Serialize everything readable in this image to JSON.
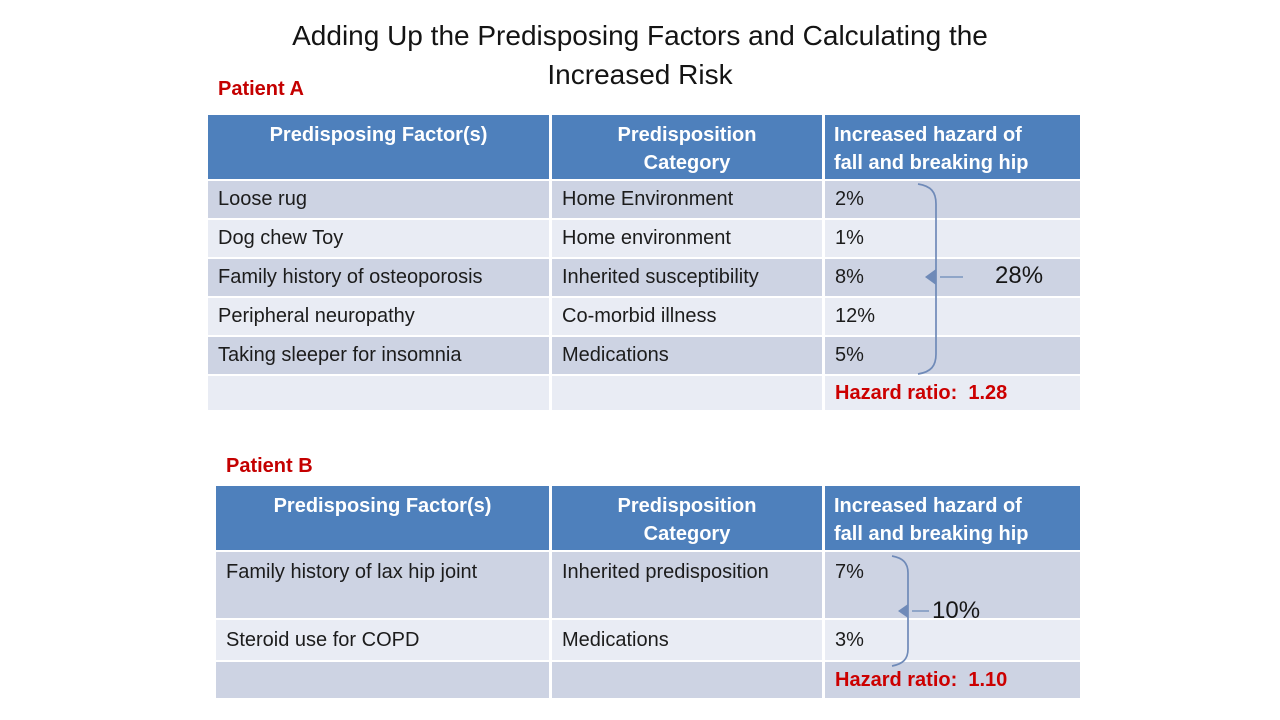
{
  "title": {
    "line1": "Adding Up the Predisposing Factors and Calculating the",
    "line2": "Increased Risk"
  },
  "tables": [
    {
      "label": "Patient A",
      "headers": [
        {
          "lines": [
            "Predisposing Factor(s)"
          ]
        },
        {
          "lines": [
            "Predisposition",
            "Category"
          ]
        },
        {
          "lines": [
            "Increased hazard of",
            "fall and breaking hip"
          ]
        }
      ],
      "rows": [
        {
          "factor": "Loose rug",
          "category": "Home Environment",
          "hazard": "2%"
        },
        {
          "factor": "Dog chew Toy",
          "category": "Home environment",
          "hazard": "1%"
        },
        {
          "factor": "Family history of osteoporosis",
          "category": "Inherited susceptibility",
          "hazard": "8%"
        },
        {
          "factor": "Peripheral neuropathy",
          "category": "Co-morbid illness",
          "hazard": "12%"
        },
        {
          "factor": "Taking sleeper for insomnia",
          "category": "Medications",
          "hazard": "5%"
        }
      ],
      "combined_total": "28%",
      "hazard_ratio_label": "Hazard ratio:",
      "hazard_ratio_value": "1.28"
    },
    {
      "label": "Patient B",
      "headers": [
        {
          "lines": [
            "Predisposing Factor(s)"
          ]
        },
        {
          "lines": [
            "Predisposition",
            "Category"
          ]
        },
        {
          "lines": [
            "Increased hazard of",
            "fall and breaking hip"
          ]
        }
      ],
      "rows": [
        {
          "factor": "Family history of lax hip joint",
          "category": "Inherited predisposition",
          "hazard": "7%"
        },
        {
          "factor": "Steroid use for COPD",
          "category": "Medications",
          "hazard": "3%"
        }
      ],
      "combined_total": "10%",
      "hazard_ratio_label": "Hazard ratio:",
      "hazard_ratio_value": "1.10"
    }
  ],
  "colors": {
    "header_bg": "#4e80bc",
    "row_dark": "#cdd3e3",
    "row_light": "#e9ecf4",
    "accent_red": "#cc0000",
    "bracket": "#6f8ab8"
  }
}
